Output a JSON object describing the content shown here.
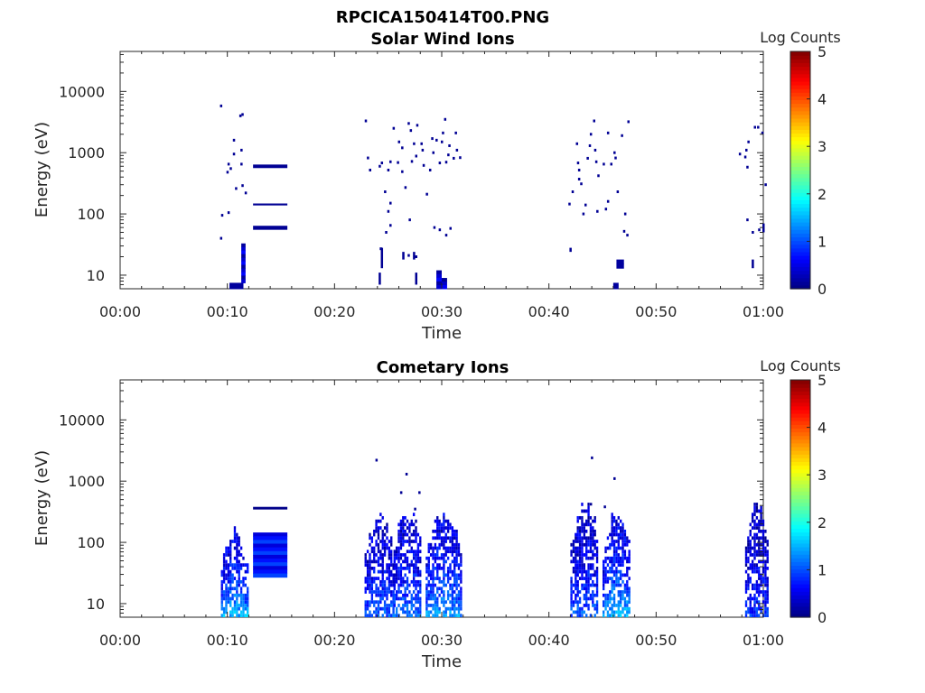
{
  "figure_title": "RPCICA150414T00.PNG",
  "chart_data": [
    {
      "type": "heatmap",
      "title": "Solar Wind Ions",
      "xlabel": "Time",
      "ylabel": "Energy (eV)",
      "x_ticks": [
        "00:00",
        "00:10",
        "00:20",
        "00:30",
        "00:40",
        "00:50",
        "01:00"
      ],
      "xlim_minutes": [
        0,
        60
      ],
      "y_scale": "log",
      "y_ticks": [
        10,
        100,
        1000,
        10000
      ],
      "y_tick_labels": [
        "10",
        "100",
        "1000",
        "10000"
      ],
      "ylim": [
        6,
        45000
      ],
      "colorbar": {
        "label": "Log Counts",
        "range": [
          0,
          5
        ],
        "ticks": [
          "0",
          "1",
          "2",
          "3",
          "4",
          "5"
        ],
        "colormap": "jet"
      },
      "legend": "none",
      "blocks": [
        {
          "t": [
            10.2,
            11.5
          ],
          "e": [
            6,
            7.5
          ],
          "v": 0.15
        },
        {
          "t": [
            11.3,
            11.7
          ],
          "e": [
            7.5,
            33
          ],
          "v": 0.15
        },
        {
          "t": [
            12.4,
            15.6
          ],
          "e": [
            56,
            64
          ],
          "v": 0.1
        },
        {
          "t": [
            12.4,
            15.6
          ],
          "e": [
            140,
            148
          ],
          "v": 0.1
        },
        {
          "t": [
            12.4,
            15.6
          ],
          "e": [
            570,
            640
          ],
          "v": 0.1
        },
        {
          "t": [
            29.5,
            30.0
          ],
          "e": [
            6,
            12
          ],
          "v": 0.15
        },
        {
          "t": [
            30.0,
            30.5
          ],
          "e": [
            6,
            9
          ],
          "v": 0.1
        },
        {
          "t": [
            46.0,
            46.5
          ],
          "e": [
            6,
            7.5
          ],
          "v": 0.15
        },
        {
          "t": [
            46.3,
            47.0
          ],
          "e": [
            13,
            18
          ],
          "v": 0.15
        }
      ],
      "dots": [
        [
          9.4,
          5800
        ],
        [
          9.5,
          95
        ],
        [
          9.4,
          40
        ],
        [
          10.1,
          105
        ],
        [
          10.0,
          480
        ],
        [
          10.1,
          650
        ],
        [
          10.3,
          550
        ],
        [
          10.6,
          950
        ],
        [
          10.6,
          1600
        ],
        [
          10.8,
          260
        ],
        [
          11.2,
          4000
        ],
        [
          11.4,
          4200
        ],
        [
          11.3,
          1100
        ],
        [
          11.3,
          650
        ],
        [
          11.4,
          290
        ],
        [
          11.7,
          220
        ],
        [
          22.9,
          3300
        ],
        [
          23.1,
          820
        ],
        [
          23.3,
          520
        ],
        [
          24.2,
          600
        ],
        [
          24.4,
          680
        ],
        [
          24.7,
          230
        ],
        [
          25.0,
          520
        ],
        [
          25.2,
          710
        ],
        [
          25.0,
          110
        ],
        [
          25.2,
          150
        ],
        [
          25.5,
          2500
        ],
        [
          26.0,
          1500
        ],
        [
          25.9,
          690
        ],
        [
          26.3,
          1200
        ],
        [
          26.3,
          490
        ],
        [
          26.6,
          270
        ],
        [
          26.9,
          3000
        ],
        [
          27.1,
          2300
        ],
        [
          27.0,
          80
        ],
        [
          27.4,
          1400
        ],
        [
          27.7,
          2800
        ],
        [
          27.6,
          880
        ],
        [
          28.1,
          1400
        ],
        [
          28.2,
          1100
        ],
        [
          28.3,
          620
        ],
        [
          28.6,
          210
        ],
        [
          29.2,
          1000
        ],
        [
          29.1,
          1700
        ],
        [
          29.5,
          1600
        ],
        [
          29.8,
          680
        ],
        [
          30.0,
          1500
        ],
        [
          30.1,
          2100
        ],
        [
          30.3,
          3500
        ],
        [
          30.6,
          920
        ],
        [
          30.7,
          1300
        ],
        [
          31.1,
          810
        ],
        [
          31.3,
          2100
        ],
        [
          31.4,
          1100
        ],
        [
          31.7,
          830
        ],
        [
          27.2,
          720
        ],
        [
          28.9,
          520
        ],
        [
          30.4,
          700
        ],
        [
          25.2,
          65
        ],
        [
          24.8,
          50
        ],
        [
          29.3,
          60
        ],
        [
          30.8,
          58
        ],
        [
          24.3,
          27
        ],
        [
          26.9,
          21
        ],
        [
          27.6,
          20
        ],
        [
          29.8,
          55
        ],
        [
          30.4,
          45
        ],
        [
          41.9,
          145
        ],
        [
          42.2,
          230
        ],
        [
          42.6,
          1400
        ],
        [
          42.7,
          680
        ],
        [
          42.8,
          520
        ],
        [
          42.8,
          370
        ],
        [
          43.0,
          310
        ],
        [
          43.4,
          140
        ],
        [
          43.6,
          810
        ],
        [
          43.8,
          1300
        ],
        [
          43.9,
          2000
        ],
        [
          44.2,
          3300
        ],
        [
          44.3,
          1100
        ],
        [
          44.4,
          710
        ],
        [
          44.5,
          110
        ],
        [
          44.6,
          420
        ],
        [
          45.1,
          650
        ],
        [
          45.5,
          2100
        ],
        [
          45.5,
          160
        ],
        [
          45.8,
          650
        ],
        [
          46.1,
          1000
        ],
        [
          46.2,
          820
        ],
        [
          46.4,
          230
        ],
        [
          46.8,
          1900
        ],
        [
          47.1,
          100
        ],
        [
          47.4,
          3200
        ],
        [
          47.0,
          52
        ],
        [
          47.3,
          45
        ],
        [
          43.2,
          100
        ],
        [
          45.3,
          120
        ],
        [
          57.8,
          950
        ],
        [
          58.3,
          850
        ],
        [
          58.4,
          1100
        ],
        [
          58.5,
          580
        ],
        [
          58.6,
          1500
        ],
        [
          59.2,
          2600
        ],
        [
          59.5,
          2600
        ],
        [
          59.9,
          2100
        ],
        [
          58.5,
          80
        ],
        [
          59.0,
          50
        ],
        [
          59.6,
          55
        ],
        [
          60.2,
          300
        ]
      ],
      "bars": [
        {
          "t": 24.2,
          "lo": 7,
          "hi": 11
        },
        {
          "t": 24.4,
          "lo": 13,
          "hi": 28
        },
        {
          "t": 26.4,
          "lo": 18,
          "hi": 24
        },
        {
          "t": 27.6,
          "lo": 7,
          "hi": 11
        },
        {
          "t": 27.4,
          "lo": 18,
          "hi": 24
        },
        {
          "t": 42.0,
          "lo": 24,
          "hi": 28
        },
        {
          "t": 59.0,
          "lo": 13,
          "hi": 18
        },
        {
          "t": 60.0,
          "lo": 50,
          "hi": 70
        }
      ]
    },
    {
      "type": "heatmap",
      "title": "Cometary Ions",
      "xlabel": "Time",
      "ylabel": "Energy (eV)",
      "x_ticks": [
        "00:00",
        "00:10",
        "00:20",
        "00:30",
        "00:40",
        "00:50",
        "01:00"
      ],
      "xlim_minutes": [
        0,
        60
      ],
      "y_scale": "log",
      "y_ticks": [
        10,
        100,
        1000,
        10000
      ],
      "y_tick_labels": [
        "10",
        "100",
        "1000",
        "10000"
      ],
      "ylim": [
        6,
        45000
      ],
      "colorbar": {
        "label": "Log Counts",
        "range": [
          0,
          5
        ],
        "ticks": [
          "0",
          "1",
          "2",
          "3",
          "4",
          "5"
        ],
        "colormap": "jet"
      },
      "legend": "none",
      "bursts": [
        {
          "t": [
            9.4,
            11.8
          ],
          "e": [
            6,
            150
          ],
          "intensity": 1.1
        },
        {
          "t": [
            22.8,
            25.5
          ],
          "e": [
            6,
            260
          ],
          "intensity": 0.75
        },
        {
          "t": [
            25.5,
            28.0
          ],
          "e": [
            6,
            320
          ],
          "intensity": 0.8
        },
        {
          "t": [
            28.5,
            31.7
          ],
          "e": [
            6,
            300
          ],
          "intensity": 1.0
        },
        {
          "t": [
            42.0,
            44.6
          ],
          "e": [
            6,
            400
          ],
          "intensity": 0.75
        },
        {
          "t": [
            45.0,
            47.5
          ],
          "e": [
            6,
            280
          ],
          "intensity": 1.1
        },
        {
          "t": [
            58.3,
            60.4
          ],
          "e": [
            6,
            380
          ],
          "intensity": 0.6
        }
      ],
      "blocks": [
        {
          "t": [
            12.4,
            15.6
          ],
          "e": [
            27,
            145
          ],
          "v": 0.45
        },
        {
          "t": [
            12.4,
            15.6
          ],
          "e": [
            350,
            380
          ],
          "v": 0.05
        }
      ],
      "dots": [
        [
          23.9,
          2200
        ],
        [
          26.7,
          1300
        ],
        [
          27.9,
          650
        ],
        [
          44.0,
          2400
        ],
        [
          46.1,
          1100
        ],
        [
          45.2,
          380
        ],
        [
          43.9,
          420
        ],
        [
          27.5,
          350
        ],
        [
          26.2,
          650
        ]
      ]
    }
  ]
}
